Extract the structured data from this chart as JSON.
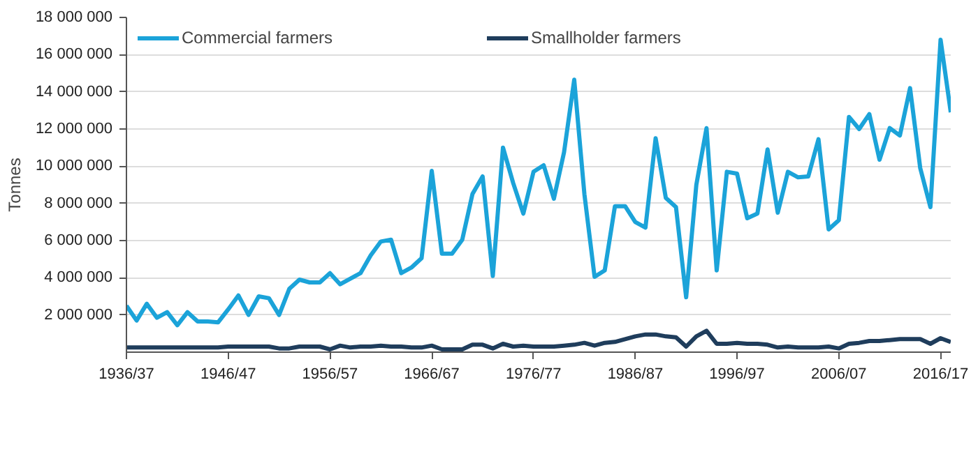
{
  "chart_data": {
    "type": "line",
    "ylabel": "Tonnes",
    "categories": [
      "1936/37",
      null,
      null,
      null,
      null,
      null,
      null,
      null,
      null,
      null,
      "1946/47",
      null,
      null,
      null,
      null,
      null,
      null,
      null,
      null,
      null,
      "1956/57",
      null,
      null,
      null,
      null,
      null,
      null,
      null,
      null,
      null,
      "1966/67",
      null,
      null,
      null,
      null,
      null,
      null,
      null,
      null,
      null,
      "1976/77",
      null,
      null,
      null,
      null,
      null,
      null,
      null,
      null,
      null,
      "1986/87",
      null,
      null,
      null,
      null,
      null,
      null,
      null,
      null,
      null,
      "1996/97",
      null,
      null,
      null,
      null,
      null,
      null,
      null,
      null,
      null,
      "2006/07",
      null,
      null,
      null,
      null,
      null,
      null,
      null,
      null,
      null,
      "2016/17",
      null
    ],
    "series": [
      {
        "name": "Commercial farmers",
        "color": "#1ba3d9",
        "values": [
          2500000,
          1700000,
          2600000,
          1850000,
          2150000,
          1450000,
          2150000,
          1650000,
          1650000,
          1600000,
          2300000,
          3050000,
          2000000,
          3000000,
          2900000,
          2000000,
          3400000,
          3900000,
          3750000,
          3750000,
          4250000,
          3650000,
          3950000,
          4250000,
          5200000,
          5950000,
          6050000,
          4250000,
          4550000,
          5050000,
          9750000,
          5300000,
          5300000,
          6050000,
          8500000,
          9450000,
          4100000,
          11000000,
          9100000,
          7450000,
          9700000,
          10050000,
          8250000,
          10750000,
          14650000,
          8500000,
          4050000,
          4400000,
          7850000,
          7850000,
          7000000,
          6700000,
          11500000,
          8300000,
          7800000,
          2950000,
          9000000,
          12050000,
          4400000,
          9700000,
          9600000,
          7200000,
          7450000,
          10900000,
          7500000,
          9700000,
          9400000,
          9450000,
          11450000,
          6600000,
          7100000,
          12650000,
          12000000,
          12800000,
          10350000,
          12050000,
          11650000,
          14200000,
          9900000,
          7800000,
          16800000,
          12900000
        ]
      },
      {
        "name": "Smallholder farmers",
        "color": "#1f3d5c",
        "values": [
          250000,
          250000,
          250000,
          250000,
          250000,
          250000,
          250000,
          250000,
          250000,
          250000,
          300000,
          300000,
          300000,
          300000,
          300000,
          200000,
          200000,
          300000,
          300000,
          300000,
          150000,
          350000,
          250000,
          300000,
          300000,
          350000,
          300000,
          300000,
          250000,
          250000,
          350000,
          150000,
          150000,
          150000,
          400000,
          400000,
          200000,
          450000,
          300000,
          350000,
          300000,
          300000,
          300000,
          350000,
          400000,
          500000,
          350000,
          500000,
          550000,
          700000,
          850000,
          950000,
          950000,
          850000,
          800000,
          300000,
          850000,
          1150000,
          450000,
          450000,
          500000,
          450000,
          450000,
          400000,
          250000,
          300000,
          250000,
          250000,
          250000,
          300000,
          200000,
          450000,
          500000,
          600000,
          600000,
          650000,
          700000,
          700000,
          700000,
          450000,
          750000,
          550000
        ]
      }
    ],
    "ylim": [
      0,
      18000000
    ],
    "yticks": [
      {
        "value": 2000000,
        "label": "2 000 000"
      },
      {
        "value": 4000000,
        "label": "4 000 000"
      },
      {
        "value": 6000000,
        "label": "6 000 000"
      },
      {
        "value": 8000000,
        "label": "8 000 000"
      },
      {
        "value": 10000000,
        "label": "10 000 000"
      },
      {
        "value": 12000000,
        "label": "12 000 000"
      },
      {
        "value": 14000000,
        "label": "14 000 000"
      },
      {
        "value": 16000000,
        "label": "16 000 000"
      },
      {
        "value": 18000000,
        "label": "18 000 000"
      }
    ],
    "grid": "y",
    "legend": "top left",
    "marker": "none",
    "line_style": "solid"
  }
}
